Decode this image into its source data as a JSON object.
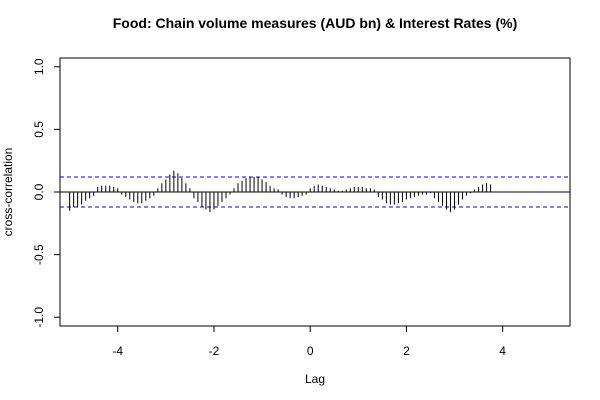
{
  "chart_data": {
    "type": "bar",
    "title": "Food: Chain volume measures (AUD bn) & Interest Rates (%)",
    "xlabel": "Lag",
    "ylabel": "cross-correlation",
    "xlim": [
      -5.2,
      5.4
    ],
    "ylim": [
      -1.07,
      1.07
    ],
    "x_ticks": [
      -4,
      -2,
      0,
      2,
      4
    ],
    "x_tick_labels": [
      "-4",
      "-2",
      "0",
      "2",
      "4"
    ],
    "y_ticks": [
      -1.0,
      -0.5,
      0.0,
      0.5,
      1.0
    ],
    "y_tick_labels": [
      "-1.0",
      "-0.5",
      "0.0",
      "0.5",
      "1.0"
    ],
    "confidence_limit": 0.12,
    "colors": {
      "bars": "#000000",
      "confidence_lines": "#0000ff",
      "zero_line": "#000000",
      "frame": "#000000"
    },
    "lag_start": -5.0,
    "lag_step": 0.0833333,
    "values": [
      -0.15,
      -0.12,
      -0.12,
      -0.1,
      -0.07,
      -0.05,
      -0.03,
      0.04,
      0.05,
      0.05,
      0.05,
      0.04,
      0.03,
      -0.02,
      -0.04,
      -0.06,
      -0.08,
      -0.09,
      -0.09,
      -0.07,
      -0.05,
      -0.03,
      0.03,
      0.07,
      0.1,
      0.14,
      0.17,
      0.15,
      0.11,
      0.07,
      0.03,
      -0.05,
      -0.08,
      -0.12,
      -0.14,
      -0.16,
      -0.14,
      -0.11,
      -0.08,
      -0.05,
      -0.02,
      0.03,
      0.07,
      0.09,
      0.11,
      0.12,
      0.12,
      0.12,
      0.1,
      0.08,
      0.05,
      0.03,
      0.02,
      -0.02,
      -0.04,
      -0.05,
      -0.05,
      -0.04,
      -0.03,
      -0.02,
      0.03,
      0.05,
      0.06,
      0.05,
      0.04,
      0.03,
      0.02,
      0.01,
      0.01,
      0.02,
      0.03,
      0.04,
      0.04,
      0.04,
      0.03,
      0.03,
      0.02,
      -0.04,
      -0.06,
      -0.09,
      -0.1,
      -0.1,
      -0.09,
      -0.08,
      -0.06,
      -0.05,
      -0.04,
      -0.03,
      -0.02,
      -0.02,
      -0.01,
      -0.05,
      -0.08,
      -0.11,
      -0.14,
      -0.16,
      -0.14,
      -0.1,
      -0.06,
      -0.03,
      -0.01,
      0.02,
      0.04,
      0.06,
      0.07,
      0.06
    ]
  }
}
